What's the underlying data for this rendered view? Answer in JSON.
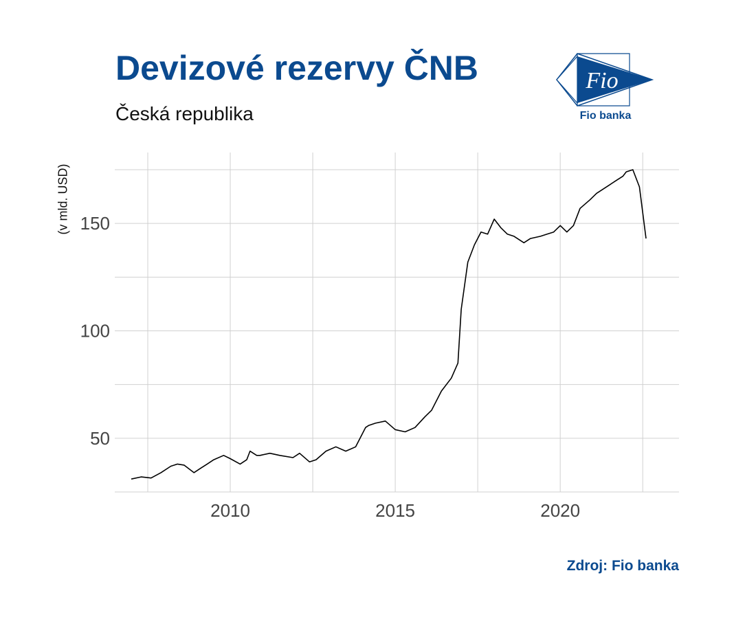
{
  "header": {
    "title": "Devizové rezervy ČNB",
    "subtitle": "Česká republika"
  },
  "logo": {
    "mark_text": "Fio",
    "caption": "Fio banka",
    "color": "#0b4a8f"
  },
  "footer": {
    "source": "Zdroj: Fio banka"
  },
  "chart_data": {
    "type": "line",
    "title": "Devizové rezervy ČNB",
    "subtitle": "Česká republika",
    "xlabel": "",
    "ylabel": "(v mld. USD)",
    "xlim": [
      2006.5,
      2023.6
    ],
    "ylim": [
      25,
      183
    ],
    "x_ticks": [
      2010,
      2015,
      2020
    ],
    "x_tick_labels": [
      "2010",
      "2015",
      "2020"
    ],
    "y_ticks": [
      50,
      100,
      150
    ],
    "y_tick_labels": [
      "50",
      "100",
      "150"
    ],
    "grid": true,
    "line_color": "#000000",
    "series": [
      {
        "x": [
          2007.0,
          2007.3,
          2007.6,
          2007.9,
          2008.2,
          2008.4,
          2008.6,
          2008.9,
          2009.1,
          2009.3,
          2009.5,
          2009.8,
          2010.0,
          2010.3,
          2010.5,
          2010.6,
          2010.8,
          2010.9,
          2011.2,
          2011.5,
          2011.9,
          2012.1,
          2012.4,
          2012.6,
          2012.9,
          2013.2,
          2013.5,
          2013.8,
          2014.1,
          2014.2,
          2014.4,
          2014.7,
          2015.0,
          2015.3,
          2015.6,
          2015.9,
          2016.1,
          2016.4,
          2016.7,
          2016.9,
          2017.0,
          2017.2,
          2017.4,
          2017.6,
          2017.8,
          2018.0,
          2018.2,
          2018.4,
          2018.6,
          2018.9,
          2019.1,
          2019.4,
          2019.6,
          2019.8,
          2020.0,
          2020.2,
          2020.4,
          2020.6,
          2020.9,
          2021.1,
          2021.3,
          2021.5,
          2021.7,
          2021.9,
          2022.0,
          2022.2,
          2022.4,
          2022.6
        ],
        "y": [
          31,
          32,
          31.5,
          34,
          37,
          38,
          37.5,
          34,
          36,
          38,
          40,
          42,
          40.5,
          38,
          40,
          44,
          42,
          42,
          43,
          42,
          41,
          43,
          39,
          40,
          44,
          46,
          44,
          46,
          55,
          56,
          57,
          58,
          54,
          53,
          55,
          60,
          63,
          72,
          78,
          85,
          110,
          132,
          140,
          146,
          145,
          152,
          148,
          145,
          144,
          141,
          143,
          144,
          145,
          146,
          149,
          146,
          149,
          157,
          161,
          164,
          166,
          168,
          170,
          172,
          174,
          175,
          167,
          143
        ]
      }
    ]
  }
}
